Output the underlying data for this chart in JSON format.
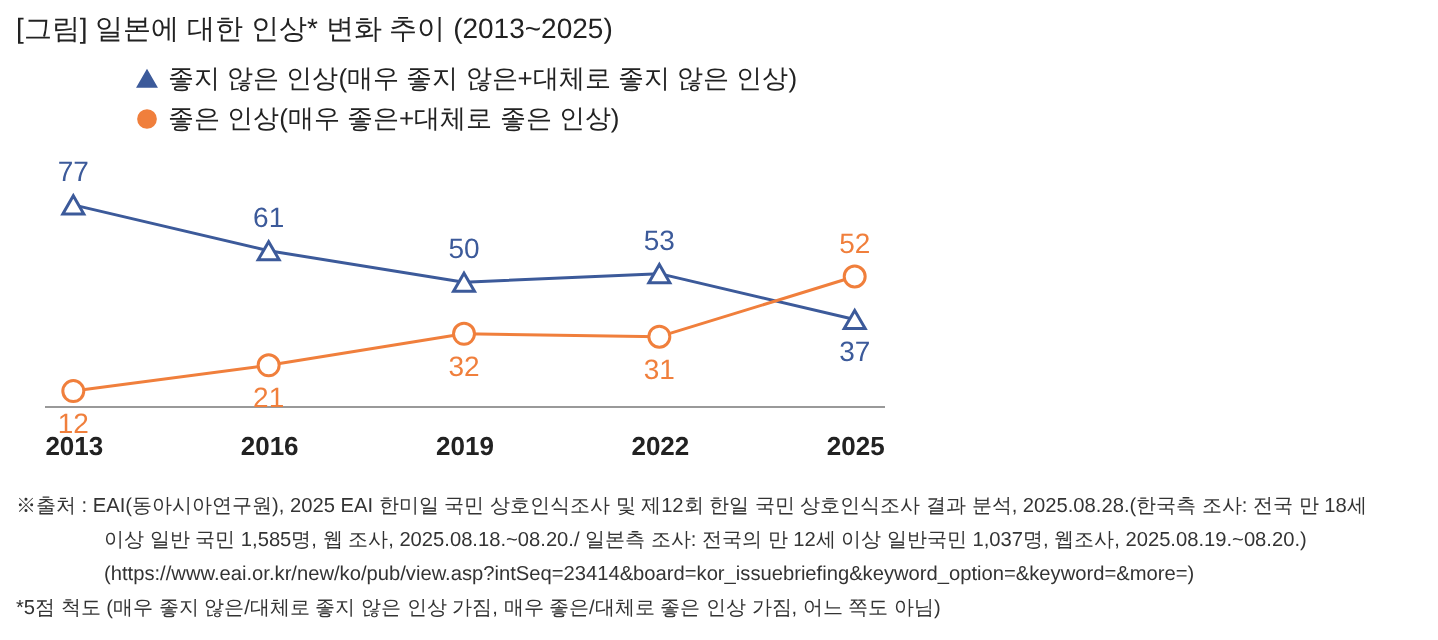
{
  "chart_data": {
    "type": "line",
    "title": "[그림] 일본에 대한 인상* 변화 추이 (2013~2025)",
    "categories": [
      "2013",
      "2016",
      "2019",
      "2022",
      "2025"
    ],
    "series": [
      {
        "name": "좋지 않은 인상(매우 좋지 않은+대체로 좋지 않은 인상)",
        "color": "#3c5a9a",
        "marker": "triangle",
        "values": [
          77,
          61,
          50,
          53,
          37
        ]
      },
      {
        "name": "좋은 인상(매우 좋은+대체로 좋은 인상)",
        "color": "#f07f3c",
        "marker": "circle",
        "values": [
          12,
          21,
          32,
          31,
          52
        ]
      }
    ],
    "data_labels": true,
    "legend": "top left",
    "grid": false,
    "line_style": "solid",
    "annotations": [
      "※출처 : EAI(동아시아연구원), 2025 EAI 한미일 국민 상호인식조사 및 제12회 한일 국민 상호인식조사 결과 분석, 2025.08.28.(한국측 조사: 전국 만 18세",
      "이상 일반 국민 1,585명, 웹 조사, 2025.08.18.~08.20./ 일본측 조사: 전국의 만 12세 이상 일반국민 1,037명, 웹조사, 2025.08.19.~08.20.)",
      "(https://www.eai.or.kr/new/ko/pub/view.asp?intSeq=23414&board=kor_issuebriefing&keyword_option=&keyword=&more=)",
      "*5점 척도 (매우 좋지 않은/대체로 좋지 않은 인상 가짐, 매우 좋은/대체로 좋은 인상 가짐, 어느 쪽도 아님)"
    ]
  }
}
